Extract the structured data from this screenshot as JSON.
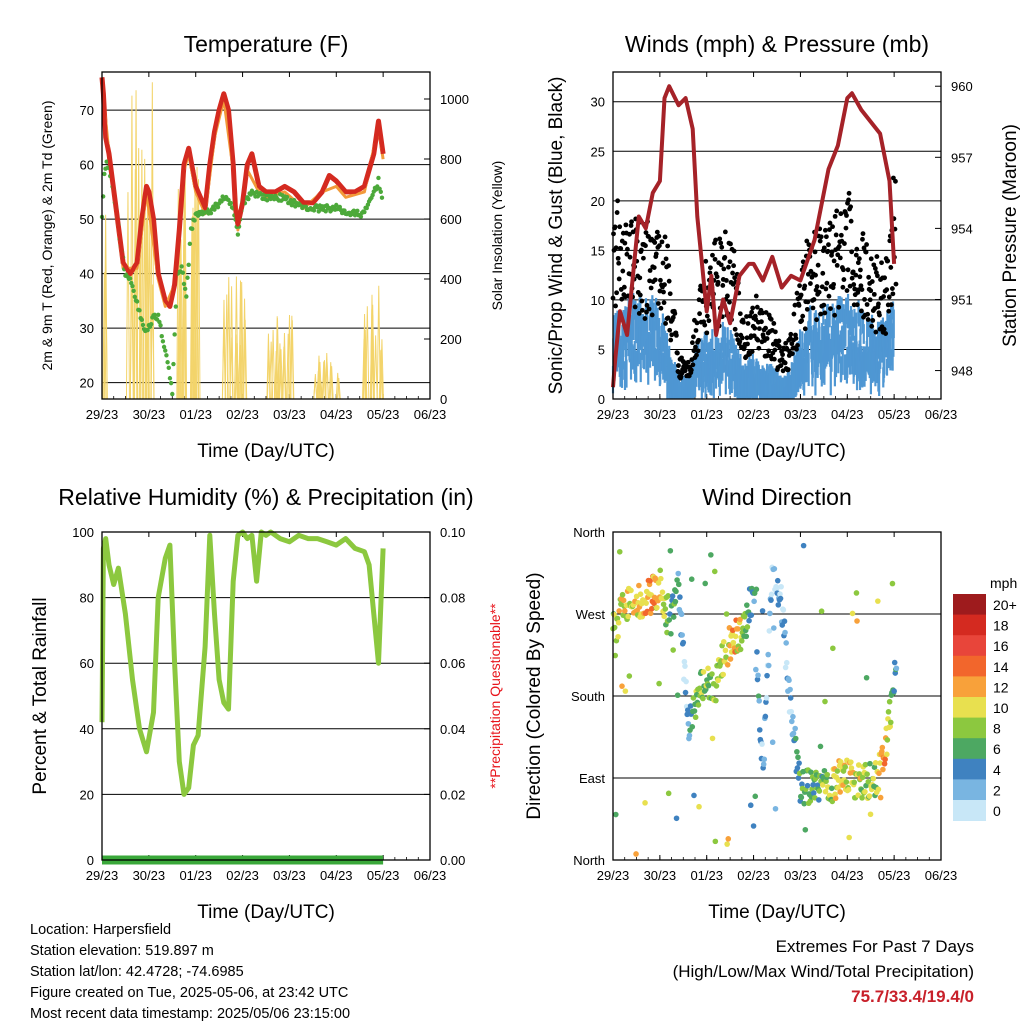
{
  "chart_data": [
    {
      "id": "temperature",
      "type": "line",
      "title": "Temperature (F)",
      "xlabel": "Time (Day/UTC)",
      "ylabel": "2m & 9m T (Red, Orange) & 2m Td (Green)",
      "y2label": "Solar Insolation (Yellow)",
      "x_ticks": [
        "29/23",
        "30/23",
        "01/23",
        "02/23",
        "03/23",
        "04/23",
        "05/23",
        "06/23"
      ],
      "ylim": [
        17,
        77
      ],
      "y_ticks": [
        20,
        30,
        40,
        50,
        60,
        70
      ],
      "y2lim": [
        0,
        1090
      ],
      "y2_ticks": [
        0,
        200,
        400,
        600,
        800,
        1000
      ],
      "grid": true,
      "series": [
        {
          "name": "2m T",
          "color": "#d42a20",
          "x": [
            0,
            0.03,
            0.08,
            0.15,
            0.3,
            0.45,
            0.6,
            0.75,
            0.85,
            0.95,
            1.0,
            1.1,
            1.2,
            1.35,
            1.45,
            1.55,
            1.65,
            1.75,
            1.85,
            2.0,
            2.1,
            2.2,
            2.3,
            2.4,
            2.5,
            2.6,
            2.7,
            2.8,
            2.85,
            2.9,
            3.0,
            3.1,
            3.2,
            3.35,
            3.5,
            3.7,
            3.9,
            4.1,
            4.3,
            4.5,
            4.7,
            4.85,
            5.0,
            5.2,
            5.4,
            5.6,
            5.8,
            5.9,
            6.0
          ],
          "y": [
            76,
            73,
            65,
            62,
            52,
            42,
            40,
            42,
            50,
            56,
            55,
            50,
            40,
            35,
            34,
            38,
            48,
            60,
            63,
            56,
            54,
            52,
            60,
            66,
            70,
            73,
            70,
            60,
            52,
            49,
            53,
            60,
            62,
            56,
            55,
            55,
            56,
            55,
            53,
            53,
            55,
            58,
            57,
            55,
            55,
            56,
            62,
            68,
            62
          ]
        },
        {
          "name": "9m T",
          "color": "#f29a3a",
          "x": [
            0,
            0.15,
            0.45,
            0.75,
            0.95,
            1.2,
            1.35,
            1.55,
            1.75,
            1.85,
            2.0,
            2.2,
            2.4,
            2.6,
            2.8,
            2.9,
            3.1,
            3.35,
            3.5,
            3.9,
            4.3,
            4.7,
            5.0,
            5.2,
            5.6,
            5.9,
            6.0
          ],
          "y": [
            75,
            62,
            41,
            41,
            55,
            39,
            34,
            38,
            59,
            62,
            55,
            51,
            65,
            72,
            59,
            48,
            59,
            55,
            54,
            55,
            52,
            55,
            56,
            54,
            55,
            67,
            61
          ]
        },
        {
          "name": "2m Td",
          "color": "#4ca93a",
          "x": [
            0,
            0.05,
            0.1,
            0.2,
            0.3,
            0.4,
            0.5,
            0.6,
            0.7,
            0.8,
            0.9,
            1.0,
            1.1,
            1.2,
            1.3,
            1.4,
            1.5,
            1.6,
            1.7,
            1.8,
            1.9,
            2.0,
            2.2,
            2.4,
            2.6,
            2.8,
            2.9,
            3.0,
            3.2,
            3.5,
            3.8,
            4.1,
            4.4,
            4.7,
            5.0,
            5.3,
            5.6,
            5.9,
            6.0
          ],
          "y": [
            50,
            58,
            60,
            58,
            52,
            45,
            40,
            39,
            36,
            33,
            30,
            30,
            32,
            32,
            28,
            24,
            18,
            40,
            41,
            36,
            48,
            51,
            51,
            52,
            54,
            52,
            47,
            53,
            55,
            54,
            54,
            53,
            52,
            52,
            52,
            51,
            51,
            57,
            53
          ]
        }
      ],
      "insolation": {
        "name": "Solar Insolation",
        "color": "#f3d46b",
        "day_peaks": [
          1000,
          1060,
          880,
          440,
          280,
          170,
          380,
          1040
        ]
      }
    },
    {
      "id": "winds_pressure",
      "type": "scatter",
      "title": "Winds (mph) & Pressure (mb)",
      "xlabel": "Time (Day/UTC)",
      "ylabel": "Sonic/Prop Wind & Gust (Blue, Black)",
      "y2label": "Station Pressure (Maroon)",
      "x_ticks": [
        "29/23",
        "30/23",
        "01/23",
        "02/23",
        "03/23",
        "04/23",
        "05/23",
        "06/23"
      ],
      "ylim": [
        0,
        33
      ],
      "y_ticks": [
        0,
        5,
        10,
        15,
        20,
        25,
        30
      ],
      "y2lim": [
        946.8,
        960.6
      ],
      "y2_ticks": [
        948,
        951,
        954,
        957,
        960
      ],
      "grid": true,
      "wind": {
        "color": "#4f97d3",
        "x": [
          0,
          0.2,
          0.4,
          0.6,
          0.8,
          1.0,
          1.2,
          1.4,
          1.6,
          1.8,
          2.0,
          2.2,
          2.4,
          2.6,
          2.8,
          3.0,
          3.2,
          3.4,
          3.6,
          3.8,
          4.0,
          4.2,
          4.4,
          4.6,
          4.8,
          5.0,
          5.2,
          5.4,
          5.6,
          5.8,
          6.0
        ],
        "y": [
          7,
          8,
          9,
          9,
          9,
          9,
          5,
          2,
          2,
          5,
          6,
          6,
          7,
          5,
          3,
          4,
          3,
          3,
          2,
          3,
          6,
          8,
          8,
          8,
          9,
          9,
          9,
          8,
          7,
          7,
          9
        ]
      },
      "gust": {
        "color": "#000000",
        "x": [
          0,
          0.2,
          0.4,
          0.6,
          0.8,
          1.0,
          1.2,
          1.4,
          1.6,
          1.8,
          2.0,
          2.2,
          2.4,
          2.6,
          2.8,
          3.0,
          3.2,
          3.4,
          3.6,
          3.8,
          4.0,
          4.2,
          4.4,
          4.6,
          4.8,
          5.0,
          5.2,
          5.4,
          5.6,
          5.8,
          6.0
        ],
        "y": [
          17,
          16,
          15,
          14,
          15,
          15,
          12,
          4,
          3,
          8,
          12,
          13,
          14,
          12,
          6,
          9,
          7,
          7,
          4,
          6,
          11,
          14,
          14,
          14,
          16,
          17,
          15,
          13,
          12,
          11,
          20
        ]
      },
      "pressure": {
        "name": "Station Pressure",
        "color": "#a52228",
        "x": [
          0,
          0.05,
          0.15,
          0.3,
          0.45,
          0.55,
          0.7,
          0.85,
          1.0,
          1.1,
          1.2,
          1.4,
          1.55,
          1.7,
          1.8,
          1.9,
          2.0,
          2.1,
          2.2,
          2.35,
          2.5,
          2.7,
          2.9,
          3.0,
          3.2,
          3.4,
          3.6,
          3.8,
          4.0,
          4.3,
          4.6,
          4.8,
          5.0,
          5.1,
          5.3,
          5.5,
          5.7,
          5.9,
          6.0
        ],
        "y": [
          947.3,
          948.5,
          950.5,
          949.5,
          952.5,
          954.5,
          954.0,
          955.5,
          956.0,
          959.5,
          960.0,
          959.2,
          959.5,
          958.2,
          954.5,
          952.5,
          950.5,
          952.0,
          949.5,
          951.0,
          950.0,
          952.0,
          952.5,
          952.5,
          951.8,
          952.8,
          951.5,
          952.0,
          951.8,
          953.5,
          956.5,
          957.5,
          959.5,
          959.7,
          959.0,
          958.5,
          958.0,
          956.0,
          952.5
        ]
      }
    },
    {
      "id": "humidity_precip",
      "type": "line",
      "title": "Relative Humidity (%) & Precipitation (in)",
      "xlabel": "Time (Day/UTC)",
      "ylabel": "Percent & Total Rainfall",
      "y2label": "**Precipitation Questionable**",
      "y2label_color": "#e8141b",
      "x_ticks": [
        "29/23",
        "30/23",
        "01/23",
        "02/23",
        "03/23",
        "04/23",
        "05/23",
        "06/23"
      ],
      "ylim": [
        0,
        100
      ],
      "y_ticks": [
        0,
        20,
        40,
        60,
        80,
        100
      ],
      "y2lim": [
        0,
        0.1
      ],
      "y2_ticks": [
        "0.00",
        "0.02",
        "0.04",
        "0.06",
        "0.08",
        "0.10"
      ],
      "grid": true,
      "series": [
        {
          "name": "Relative Humidity",
          "color": "#8cc83f",
          "x": [
            0,
            0.03,
            0.08,
            0.15,
            0.25,
            0.35,
            0.5,
            0.65,
            0.8,
            0.95,
            1.1,
            1.2,
            1.35,
            1.45,
            1.55,
            1.65,
            1.75,
            1.85,
            1.95,
            2.05,
            2.2,
            2.3,
            2.4,
            2.5,
            2.6,
            2.7,
            2.8,
            2.9,
            3.0,
            3.1,
            3.2,
            3.3,
            3.4,
            3.5,
            3.6,
            3.8,
            4.0,
            4.2,
            4.4,
            4.6,
            4.8,
            5.0,
            5.2,
            5.4,
            5.6,
            5.7,
            5.8,
            5.9,
            6.0
          ],
          "y": [
            42,
            95,
            98,
            90,
            84,
            89,
            75,
            55,
            40,
            33,
            45,
            80,
            92,
            96,
            60,
            30,
            20,
            22,
            35,
            38,
            65,
            99,
            75,
            55,
            48,
            46,
            85,
            99,
            100,
            98,
            99,
            85,
            100,
            99,
            100,
            98,
            97,
            99,
            98,
            98,
            97,
            96,
            98,
            95,
            94,
            90,
            75,
            60,
            95
          ]
        },
        {
          "name": "Total Precipitation",
          "color": "#3aa83a",
          "x": [
            0,
            6
          ],
          "y": [
            0,
            0
          ]
        }
      ]
    },
    {
      "id": "wind_direction",
      "type": "scatter",
      "title": "Wind Direction",
      "xlabel": "Time (Day/UTC)",
      "ylabel": "Direction (Colored By Speed)",
      "x_ticks": [
        "29/23",
        "30/23",
        "01/23",
        "02/23",
        "03/23",
        "04/23",
        "05/23",
        "06/23"
      ],
      "y_ticks": [
        "North",
        "East",
        "South",
        "West",
        "North"
      ],
      "ylim": [
        0,
        360
      ],
      "grid": true,
      "legend": {
        "title": "mph",
        "placement": "right",
        "labels": [
          "20+",
          "18",
          "16",
          "14",
          "12",
          "10",
          "8",
          "6",
          "4",
          "2",
          "0"
        ],
        "colors": [
          "#9e1b1d",
          "#d42a20",
          "#e8453a",
          "#f2662c",
          "#f8a13a",
          "#e8e04f",
          "#8cc83f",
          "#4da862",
          "#3f82c0",
          "#79b5e1",
          "#c8e7f7"
        ]
      },
      "points_summary": {
        "x": [
          0,
          0.2,
          0.4,
          0.6,
          0.8,
          1.0,
          1.2,
          1.4,
          1.6,
          1.8,
          2.0,
          2.2,
          2.4,
          2.6,
          2.8,
          3.0,
          3.2,
          3.4,
          3.6,
          3.8,
          4.0,
          4.2,
          4.4,
          4.6,
          4.8,
          5.0,
          5.2,
          5.4,
          5.6,
          5.8,
          6.0
        ],
        "direction": [
          250,
          275,
          280,
          285,
          290,
          300,
          260,
          300,
          150,
          180,
          200,
          190,
          230,
          245,
          250,
          300,
          90,
          320,
          280,
          160,
          80,
          80,
          80,
          80,
          90,
          90,
          85,
          85,
          90,
          110,
          200
        ],
        "speed": [
          8,
          10,
          10,
          12,
          12,
          10,
          6,
          4,
          2,
          8,
          8,
          8,
          10,
          12,
          8,
          4,
          2,
          2,
          2,
          2,
          6,
          6,
          6,
          8,
          10,
          10,
          10,
          8,
          8,
          14,
          4
        ]
      }
    }
  ],
  "info": {
    "location": "Location: Harpersfield",
    "elevation": "Station elevation: 519.897 m",
    "latlon": "Station lat/lon: 42.4728; -74.6985",
    "created": "Figure created on Tue, 2025-05-06, at 23:42 UTC",
    "recent": "Most recent data timestamp: 2025/05/06 23:15:00"
  },
  "extremes": {
    "heading": "Extremes For Past 7 Days",
    "subheading": "(High/Low/Max Wind/Total Precipitation)",
    "values": "75.7/33.4/19.4/0"
  }
}
